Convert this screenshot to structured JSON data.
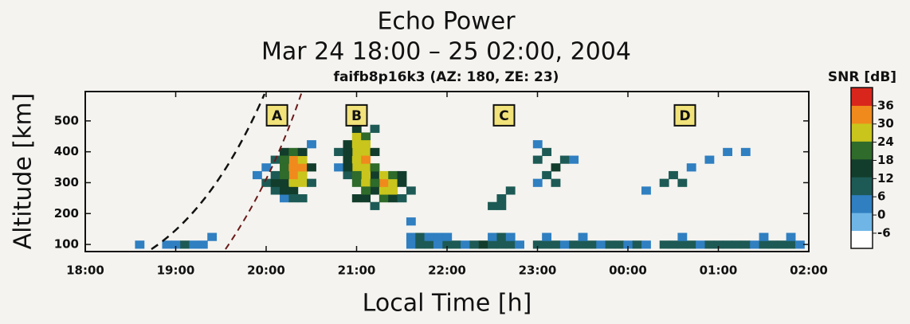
{
  "chart_data": {
    "type": "heatmap",
    "title": "Echo Power",
    "subtitle": "Mar 24 18:00 –  25 02:00, 2004",
    "caption": "faifb8p16k3 (AZ: 180, ZE: 23)",
    "x_label": "Local Time [h]",
    "y_label": "Altitude [km]",
    "colorbar_label": "SNR [dB]",
    "xlim": [
      18,
      26
    ],
    "ylim": [
      77,
      595
    ],
    "clim": [
      -11,
      42
    ],
    "xticks": [
      {
        "value": 18,
        "label": "18:00"
      },
      {
        "value": 19,
        "label": "19:00"
      },
      {
        "value": 20,
        "label": "20:00"
      },
      {
        "value": 21,
        "label": "21:00"
      },
      {
        "value": 22,
        "label": "22:00"
      },
      {
        "value": 23,
        "label": "23:00"
      },
      {
        "value": 24,
        "label": "00:00"
      },
      {
        "value": 25,
        "label": "01:00"
      },
      {
        "value": 26,
        "label": "02:00"
      }
    ],
    "yticks": [
      100,
      200,
      300,
      400,
      500
    ],
    "cticks": [
      -6,
      0,
      6,
      12,
      18,
      24,
      30,
      36
    ],
    "colors": [
      "#ffffff",
      "#6fb6e6",
      "#2f7fc1",
      "#1d5a55",
      "#123d2c",
      "#2f6b2a",
      "#c9c51c",
      "#f08a1c",
      "#d9261c"
    ],
    "annotations": [
      {
        "text": "A",
        "x": 20.12,
        "y": 518
      },
      {
        "text": "B",
        "x": 21.0,
        "y": 518
      },
      {
        "text": "C",
        "x": 22.63,
        "y": 518
      },
      {
        "text": "D",
        "x": 24.63,
        "y": 518
      }
    ],
    "x": [
      18.6,
      18.9,
      19.0,
      19.1,
      19.2,
      19.3,
      19.4,
      21.6,
      19.9,
      20.0,
      20.0,
      20.1,
      20.1,
      20.1,
      20.1,
      20.2,
      20.2,
      20.2,
      20.2,
      20.3,
      20.3,
      20.3,
      20.3,
      20.3,
      20.3,
      20.4,
      20.4,
      20.4,
      20.4,
      20.4,
      20.4,
      20.5,
      20.5,
      20.5,
      20.2,
      20.2,
      20.3,
      20.2,
      20.8,
      20.8,
      20.9,
      20.9,
      20.9,
      21.0,
      21.0,
      21.0,
      21.0,
      21.0,
      21.1,
      21.1,
      21.1,
      21.1,
      21.1,
      21.2,
      21.2,
      21.2,
      21.2,
      21.2,
      21.3,
      21.3,
      21.3,
      21.3,
      21.4,
      21.4,
      21.4,
      21.4,
      21.5,
      21.5,
      21.5,
      21.6,
      21.6,
      21.0,
      21.1,
      21.1,
      21.0,
      21.0,
      21.1,
      21.1,
      21.0,
      21.2,
      21.2,
      20.9,
      20.9,
      22.5,
      22.6,
      22.6,
      22.7,
      23.0,
      23.0,
      23.1,
      23.1,
      23.2,
      23.2,
      23.3,
      23.4,
      23.0,
      24.4,
      24.5,
      24.6,
      24.7,
      24.9,
      25.1,
      25.3,
      24.2,
      21.7,
      21.8,
      21.9,
      22.0,
      22.1,
      22.2,
      22.3,
      22.4,
      22.5,
      22.6,
      22.7,
      22.8,
      23.0,
      23.1,
      23.2,
      23.3,
      23.4,
      23.5,
      23.6,
      23.7,
      23.8,
      23.9,
      24.0,
      24.1,
      24.2,
      24.4,
      24.5,
      24.6,
      24.7,
      24.8,
      24.9,
      25.0,
      25.1,
      25.2,
      25.3,
      25.4,
      25.5,
      25.6,
      25.7,
      25.8,
      25.9,
      21.6,
      21.7,
      21.8,
      21.9,
      22.0,
      22.5,
      22.6,
      22.7,
      23.1,
      23.5,
      24.6,
      25.5,
      25.8
    ],
    "y": [
      100,
      100,
      100,
      100,
      100,
      100,
      125,
      100,
      325,
      300,
      350,
      275,
      300,
      325,
      375,
      250,
      300,
      350,
      400,
      275,
      300,
      325,
      350,
      375,
      400,
      250,
      300,
      325,
      350,
      375,
      400,
      300,
      350,
      425,
      375,
      325,
      250,
      275,
      350,
      400,
      325,
      375,
      425,
      300,
      350,
      400,
      450,
      475,
      250,
      300,
      350,
      400,
      450,
      225,
      275,
      325,
      400,
      475,
      250,
      275,
      300,
      325,
      250,
      275,
      300,
      325,
      250,
      300,
      325,
      275,
      175,
      250,
      275,
      325,
      325,
      375,
      375,
      425,
      425,
      350,
      300,
      400,
      350,
      225,
      250,
      225,
      275,
      375,
      425,
      325,
      400,
      350,
      300,
      375,
      375,
      300,
      300,
      325,
      300,
      350,
      375,
      400,
      400,
      275,
      100,
      100,
      100,
      100,
      100,
      100,
      100,
      100,
      100,
      100,
      100,
      100,
      100,
      100,
      100,
      100,
      100,
      100,
      100,
      100,
      100,
      100,
      100,
      100,
      100,
      100,
      100,
      100,
      100,
      100,
      100,
      100,
      100,
      100,
      100,
      100,
      100,
      100,
      100,
      100,
      100,
      125,
      125,
      125,
      125,
      125,
      125,
      125,
      125,
      125,
      125,
      125,
      125,
      125
    ],
    "values": [
      2,
      3,
      6,
      9,
      5,
      2,
      1,
      4,
      4,
      8,
      6,
      10,
      14,
      12,
      8,
      6,
      18,
      22,
      14,
      16,
      28,
      34,
      36,
      33,
      24,
      10,
      26,
      30,
      32,
      26,
      16,
      12,
      14,
      6,
      20,
      20,
      12,
      14,
      6,
      8,
      10,
      18,
      14,
      22,
      28,
      30,
      26,
      18,
      18,
      26,
      30,
      28,
      20,
      12,
      16,
      18,
      16,
      10,
      20,
      30,
      32,
      28,
      18,
      26,
      30,
      24,
      12,
      18,
      14,
      8,
      6,
      14,
      24,
      28,
      24,
      30,
      32,
      26,
      28,
      20,
      22,
      16,
      14,
      8,
      12,
      10,
      8,
      10,
      6,
      12,
      8,
      14,
      8,
      10,
      6,
      6,
      8,
      12,
      10,
      6,
      4,
      6,
      3,
      3,
      8,
      10,
      6,
      12,
      8,
      6,
      10,
      14,
      8,
      12,
      10,
      6,
      8,
      10,
      12,
      6,
      8,
      10,
      8,
      6,
      10,
      8,
      6,
      8,
      6,
      8,
      12,
      10,
      8,
      6,
      8,
      10,
      12,
      10,
      8,
      6,
      8,
      10,
      12,
      8,
      6,
      6,
      8,
      6,
      4,
      6,
      4,
      8,
      6,
      4,
      3,
      4,
      4,
      6
    ]
  }
}
